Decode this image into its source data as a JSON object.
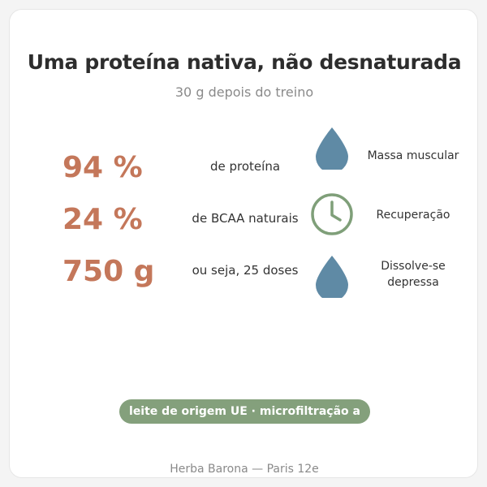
{
  "card": {
    "title": "Uma proteína nativa, não desnaturada",
    "subtitle": "30 g depois do treino",
    "stats": [
      {
        "value": "94 %",
        "description": "de proteína"
      },
      {
        "value": "24 %",
        "description": "de BCAA naturais"
      },
      {
        "value": "750 g",
        "description": "ou seja, 25 doses"
      }
    ],
    "benefits": [
      {
        "label": "Massa muscular",
        "icon": "water-drop-icon"
      },
      {
        "label": "Recuperação",
        "icon": "clock-icon"
      },
      {
        "label": "Dissolve-se depressa",
        "icon": "water-drop-icon"
      }
    ],
    "badge": "leite de origem UE · microfiltração a frio",
    "footer": "Herba Barona — Paris 12e"
  },
  "colors": {
    "accent": "#c4775a",
    "green": "#84a07c",
    "drop": "#5f8aa5",
    "clock": "#7f9f79"
  }
}
